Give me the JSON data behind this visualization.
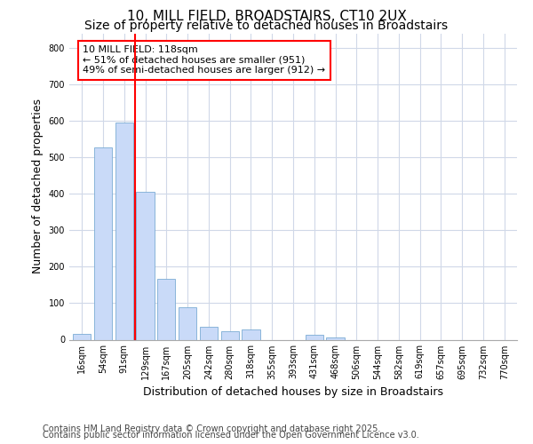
{
  "title1": "10, MILL FIELD, BROADSTAIRS, CT10 2UX",
  "title2": "Size of property relative to detached houses in Broadstairs",
  "xlabel": "Distribution of detached houses by size in Broadstairs",
  "ylabel": "Number of detached properties",
  "categories": [
    "16sqm",
    "54sqm",
    "91sqm",
    "129sqm",
    "167sqm",
    "205sqm",
    "242sqm",
    "280sqm",
    "318sqm",
    "355sqm",
    "393sqm",
    "431sqm",
    "468sqm",
    "506sqm",
    "544sqm",
    "582sqm",
    "619sqm",
    "657sqm",
    "695sqm",
    "732sqm",
    "770sqm"
  ],
  "values": [
    15,
    528,
    595,
    405,
    168,
    88,
    35,
    22,
    28,
    0,
    0,
    13,
    5,
    0,
    0,
    0,
    0,
    0,
    0,
    0,
    0
  ],
  "bar_color": "#c9daf8",
  "bar_edge_color": "#7bacd4",
  "vline_x": 2.5,
  "vline_color": "red",
  "annotation_text": "10 MILL FIELD: 118sqm\n← 51% of detached houses are smaller (951)\n49% of semi-detached houses are larger (912) →",
  "annotation_box_color": "white",
  "annotation_box_edge": "red",
  "footer1": "Contains HM Land Registry data © Crown copyright and database right 2025.",
  "footer2": "Contains public sector information licensed under the Open Government Licence v3.0.",
  "bg_color": "#ffffff",
  "plot_bg_color": "#ffffff",
  "grid_color": "#d0d8e8",
  "ylim": [
    0,
    840
  ],
  "title_fontsize": 11,
  "subtitle_fontsize": 10,
  "axis_label_fontsize": 9,
  "tick_fontsize": 7,
  "footer_fontsize": 7
}
